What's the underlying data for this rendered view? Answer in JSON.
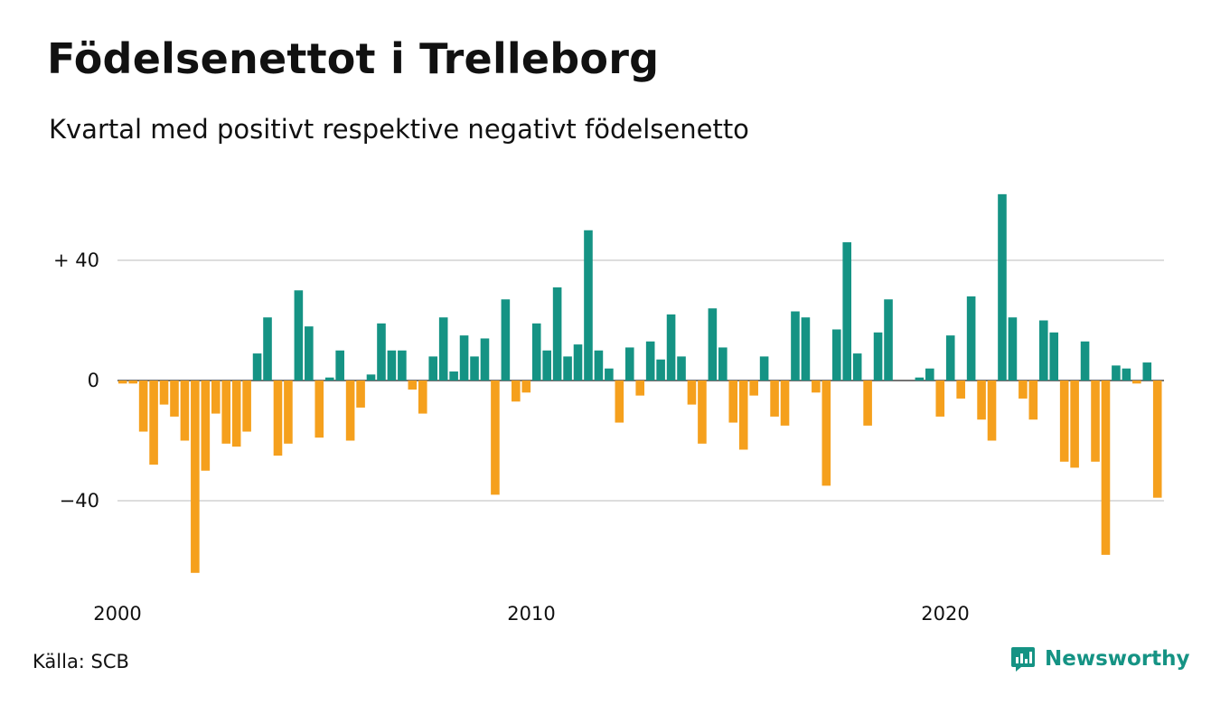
{
  "header": {
    "title": "Födelsenettot i Trelleborg",
    "subtitle": "Kvartal med positivt respektive negativt födelsenetto"
  },
  "footer": {
    "source": "Källa: SCB",
    "brand": "Newsworthy",
    "brand_icon": "newsworthy-logo-icon"
  },
  "colors": {
    "positive": "#159384",
    "negative": "#f5a01d",
    "grid": "#dddddd",
    "brand": "#159384"
  },
  "chart_data": {
    "type": "bar",
    "title": "Födelsenettot i Trelleborg",
    "subtitle": "Kvartal med positivt respektive negativt födelsenetto",
    "y_ticks": [
      {
        "value": 40,
        "label": "+ 40"
      },
      {
        "value": 0,
        "label": "0"
      },
      {
        "value": -40,
        "label": "−40"
      }
    ],
    "x_ticks": [
      {
        "value": 2000,
        "label": "2000"
      },
      {
        "value": 2010,
        "label": "2010"
      },
      {
        "value": 2020,
        "label": "2020"
      }
    ],
    "ylim": [
      -65,
      63
    ],
    "grid": true,
    "period": "quarterly",
    "start_year": 2000,
    "values": [
      -1,
      -1,
      -17,
      -28,
      -8,
      -12,
      -20,
      -64,
      -30,
      -11,
      -21,
      -22,
      -17,
      9,
      21,
      -25,
      -21,
      30,
      18,
      -19,
      1,
      10,
      -20,
      -9,
      2,
      19,
      10,
      10,
      -3,
      -11,
      8,
      21,
      3,
      15,
      8,
      14,
      -38,
      27,
      -7,
      -4,
      19,
      10,
      31,
      8,
      12,
      50,
      10,
      4,
      -14,
      11,
      -5,
      13,
      7,
      22,
      8,
      -8,
      -21,
      24,
      11,
      -14,
      -23,
      -5,
      8,
      -12,
      -15,
      23,
      21,
      -4,
      -35,
      17,
      46,
      9,
      -15,
      16,
      27,
      0,
      0,
      1,
      4,
      -12,
      15,
      -6,
      28,
      -13,
      -20,
      62,
      21,
      -6,
      -13,
      20,
      16,
      -27,
      -29,
      13,
      -27,
      -58,
      5,
      4,
      -1,
      6,
      -39
    ]
  }
}
